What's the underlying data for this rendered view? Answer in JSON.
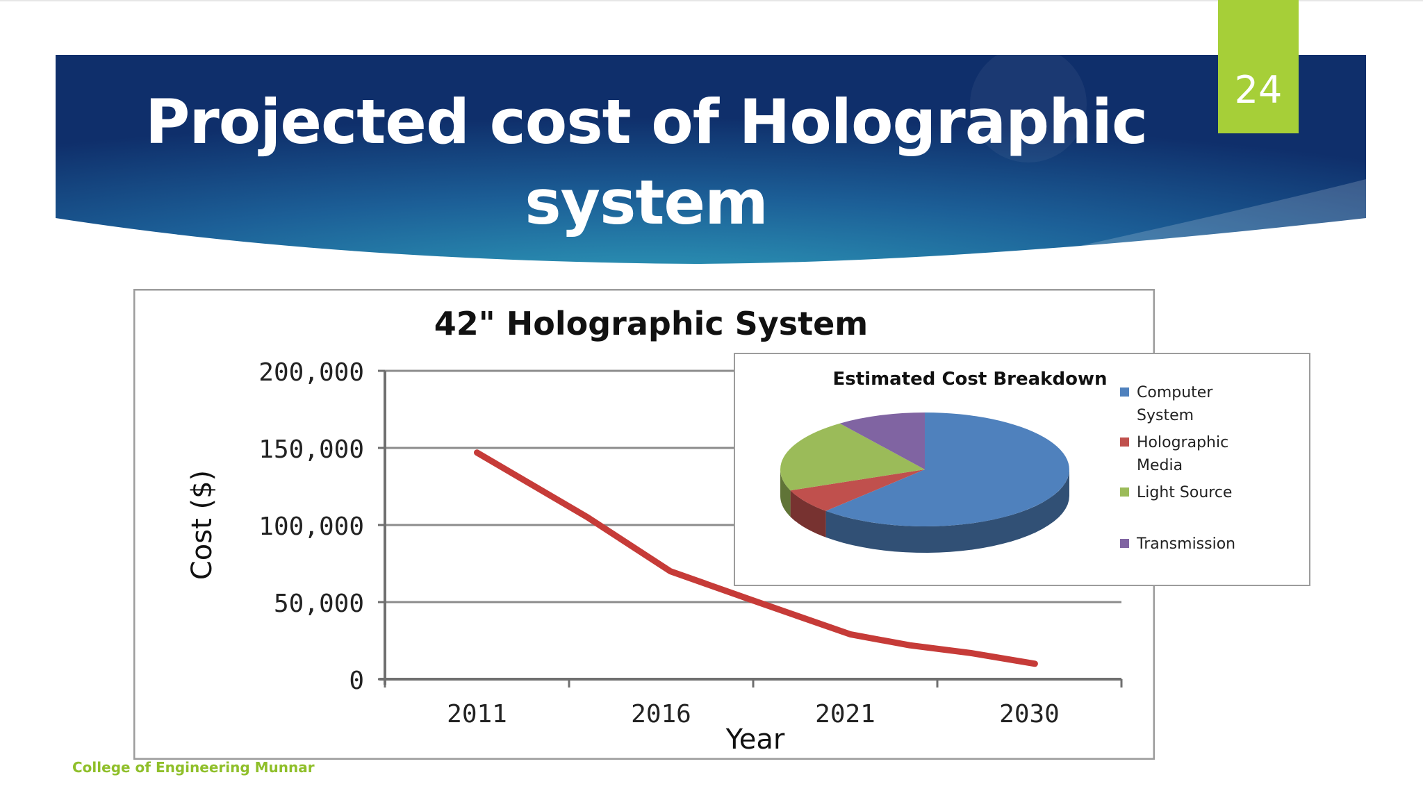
{
  "slide": {
    "title": "Projected cost of Holographic system",
    "page_number": "24",
    "footer": "College of Engineering Munnar"
  },
  "colors": {
    "banner_dark": "#0f2f6b",
    "banner_light": "#2f95b3",
    "accent_green": "#a6cf38",
    "line_red": "#c63b38",
    "pie_blue": "#4f81bd",
    "pie_red": "#c0504d",
    "pie_green": "#9bbb59",
    "pie_purple": "#8064a2"
  },
  "chart_data": [
    {
      "type": "line",
      "title": "42\" Holographic System",
      "xlabel": "Year",
      "ylabel": "Cost ($)",
      "categories": [
        "2011",
        "2016",
        "2021",
        "2030"
      ],
      "x": [
        2011,
        2013.5,
        2016,
        2018.5,
        2021,
        2023,
        2025,
        2030
      ],
      "x_positions": [
        0,
        0.6,
        1.05,
        1.5,
        2.03,
        2.35,
        2.68,
        3.03
      ],
      "values": [
        147000,
        105000,
        70000,
        51000,
        29000,
        22000,
        17000,
        10000
      ],
      "yticks": [
        "200,000",
        "150,000",
        "100,000",
        "50,000",
        "0"
      ],
      "ylim": [
        0,
        200000
      ],
      "grid": true
    },
    {
      "type": "pie",
      "title": "Estimated Cost Breakdown",
      "labels": [
        "Computer System",
        "Holographic Media",
        "Light Source",
        "Transmission"
      ],
      "legend_lines": [
        [
          "Computer",
          "System"
        ],
        [
          "Holographic",
          "Media"
        ],
        [
          "Light Source"
        ],
        [
          "Transmission"
        ]
      ],
      "values": [
        62,
        7,
        21,
        10
      ],
      "legend": "right"
    }
  ]
}
